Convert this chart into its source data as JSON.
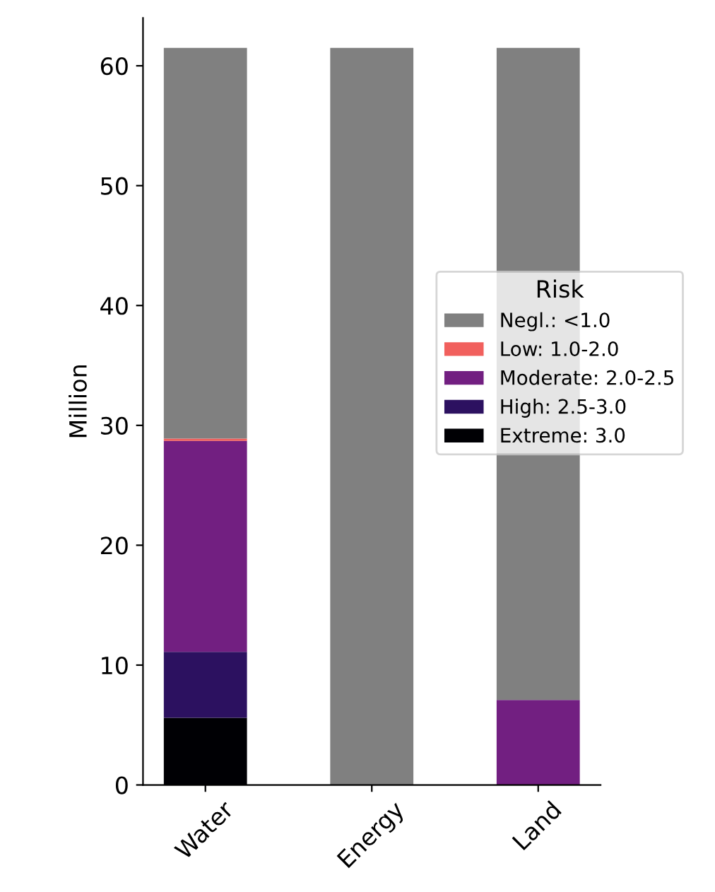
{
  "chart_data": {
    "type": "bar",
    "stacked": true,
    "ylabel": "Million",
    "legend_title": "Risk",
    "legend": "right",
    "categories": [
      "Water",
      "Energy",
      "Land"
    ],
    "series": [
      {
        "name": "Extreme: 3.0",
        "color": "#000004",
        "values": [
          5.6,
          0,
          0
        ]
      },
      {
        "name": "High: 2.5-3.0",
        "color": "#2c1160",
        "values": [
          5.5,
          0,
          0
        ]
      },
      {
        "name": "Moderate: 2.0-2.5",
        "color": "#721f81",
        "values": [
          17.6,
          0,
          7.1
        ]
      },
      {
        "name": "Low: 1.0-2.0",
        "color": "#f1605d",
        "values": [
          0.2,
          0,
          0
        ]
      },
      {
        "name": "Negl.: <1.0",
        "color": "#808080",
        "values": [
          32.6,
          61.5,
          54.4
        ]
      }
    ],
    "ylim": [
      0,
      64
    ],
    "yticks": [
      0,
      10,
      20,
      30,
      40,
      50,
      60
    ],
    "grid": false
  }
}
